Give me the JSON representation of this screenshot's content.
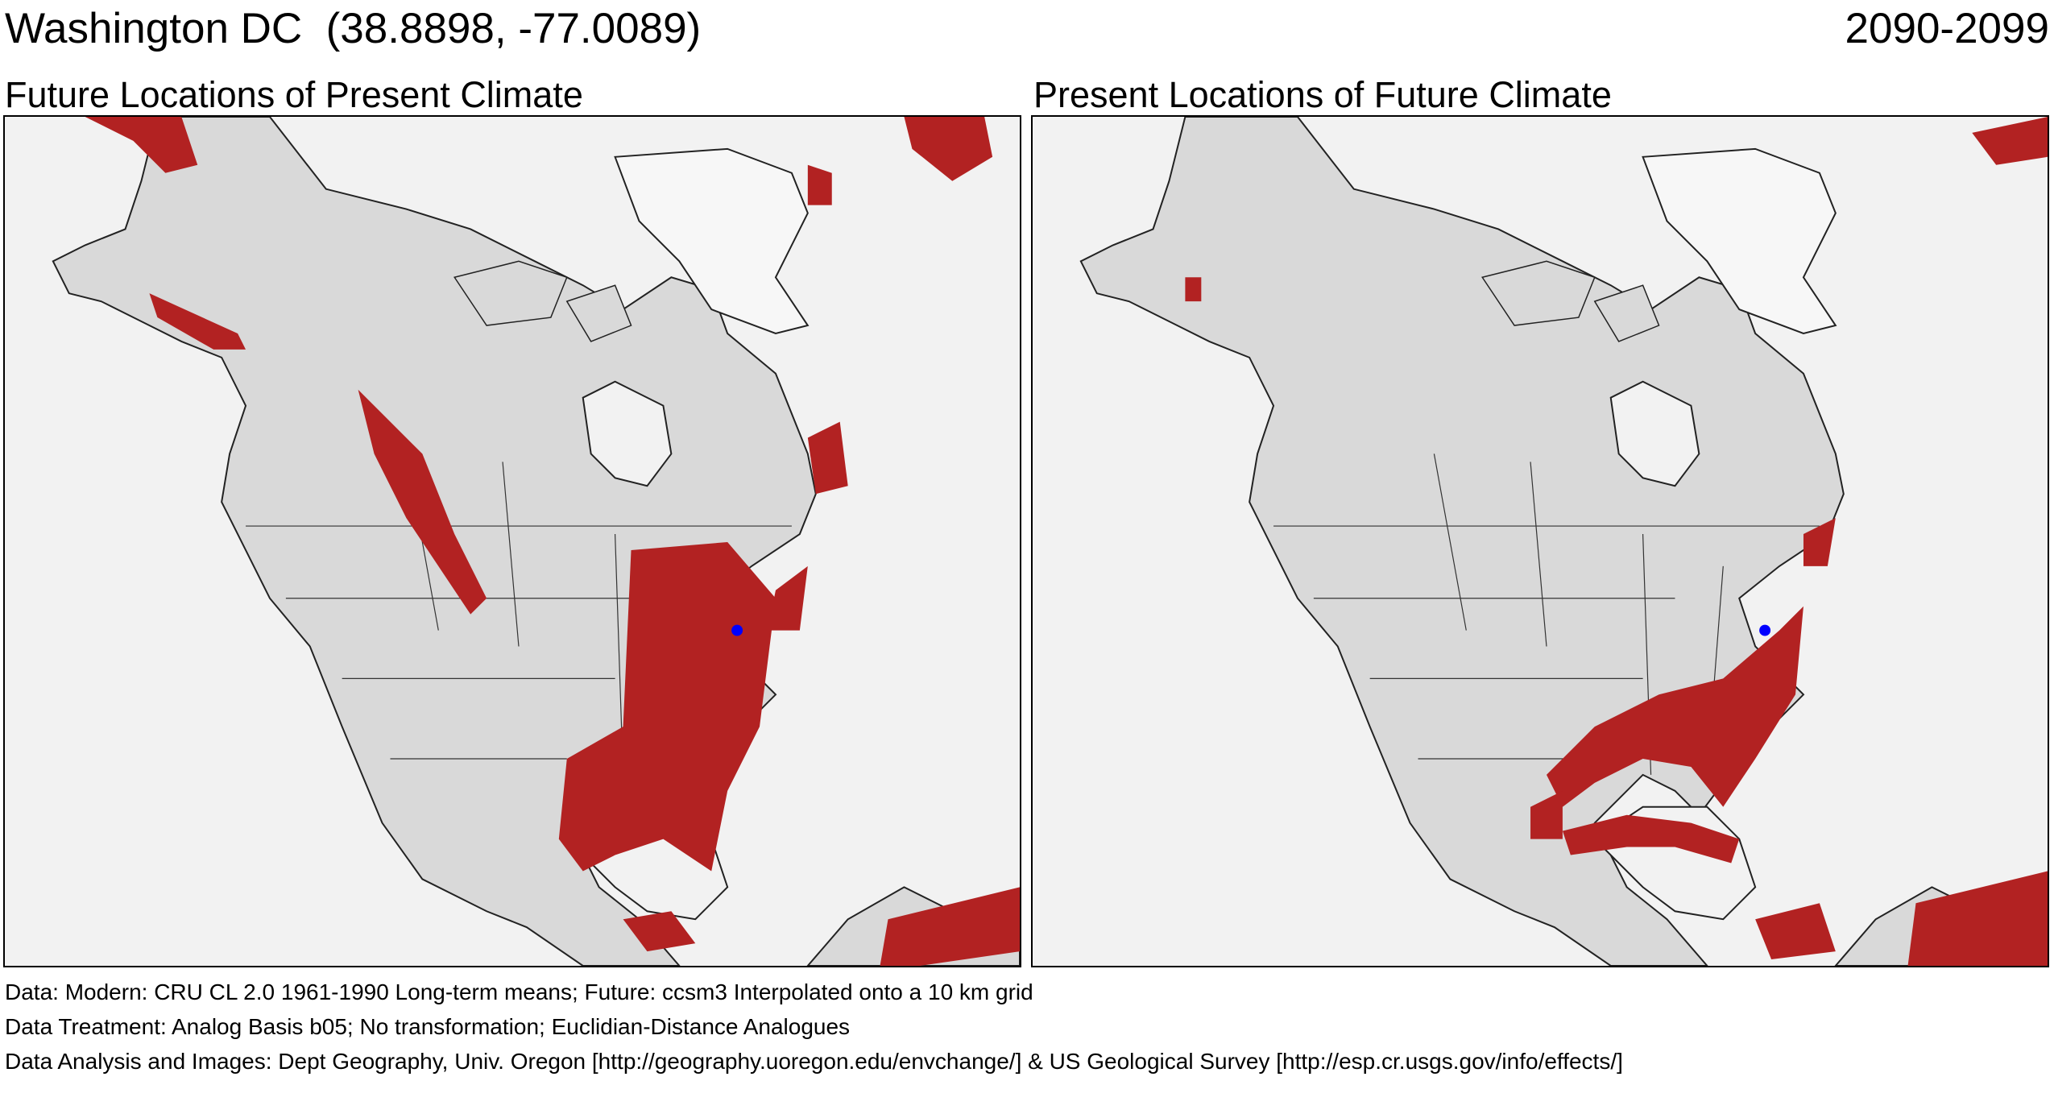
{
  "header": {
    "location": "Washington DC  (38.8898, -77.0089)",
    "period": "2090-2099"
  },
  "panels": [
    {
      "title": "Future Locations of Present Climate"
    },
    {
      "title": "Present Locations of Future Climate"
    }
  ],
  "colors": {
    "analog": "#b22222",
    "land": "#d9d9d9",
    "ocean": "#f2f2f2",
    "ice": "#f7f7f7",
    "marker": "#0000ff"
  },
  "footer": {
    "data": "Data:  Modern: CRU CL 2.0 1961-1990 Long-term means; Future: ccsm3 Interpolated onto a 10 km grid",
    "treatment": "Data Treatment:  Analog Basis b05; No transformation; Euclidian-Distance Analogues",
    "analysis": "Data Analysis and Images:  Dept Geography, Univ. Oregon [http://geography.uoregon.edu/envchange/] & US Geological Survey [http://esp.cr.usgs.gov/info/effects/]"
  }
}
